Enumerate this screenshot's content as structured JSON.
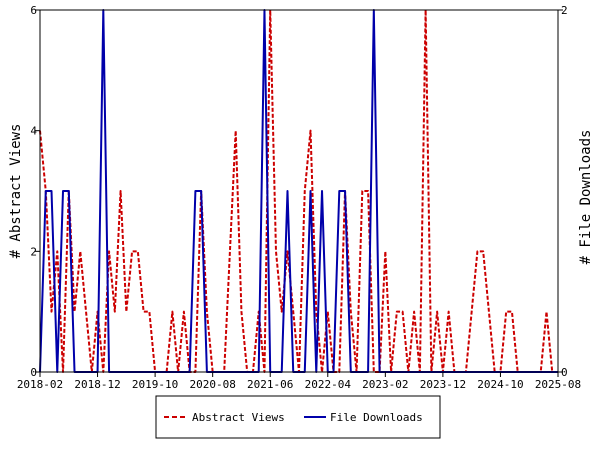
{
  "chart_data": {
    "type": "line",
    "xlabel": "",
    "ylabel_left": "# Abstract Views",
    "ylabel_right": "# File Downloads",
    "x_range": [
      "2018-02",
      "2025-08"
    ],
    "x_ticks": [
      "2018-02",
      "2018-12",
      "2019-10",
      "2020-08",
      "2021-06",
      "2022-04",
      "2023-02",
      "2023-12",
      "2024-10",
      "2025-08"
    ],
    "ylim_left": [
      0,
      6
    ],
    "yticks_left": [
      "0",
      "2",
      "4",
      "6"
    ],
    "ylim_right": [
      0,
      2
    ],
    "yticks_right": [
      "0",
      "2"
    ],
    "grid": false,
    "legend_position": "bottom",
    "series": [
      {
        "name": "Abstract Views",
        "axis": "left",
        "color": "#cc0000",
        "style": "dashed",
        "x": [
          "2018-02",
          "2018-03",
          "2018-04",
          "2018-05",
          "2018-06",
          "2018-07",
          "2018-08",
          "2018-09",
          "2018-10",
          "2018-11",
          "2018-12",
          "2019-01",
          "2019-02",
          "2019-03",
          "2019-04",
          "2019-05",
          "2019-06",
          "2019-07",
          "2019-08",
          "2019-09",
          "2019-10",
          "2019-11",
          "2019-12",
          "2020-01",
          "2020-02",
          "2020-03",
          "2020-04",
          "2020-05",
          "2020-06",
          "2020-07",
          "2020-08",
          "2020-09",
          "2020-10",
          "2020-11",
          "2020-12",
          "2021-01",
          "2021-02",
          "2021-03",
          "2021-04",
          "2021-05",
          "2021-06",
          "2021-07",
          "2021-08",
          "2021-09",
          "2021-10",
          "2021-11",
          "2021-12",
          "2022-01",
          "2022-02",
          "2022-03",
          "2022-04",
          "2022-05",
          "2022-06",
          "2022-07",
          "2022-08",
          "2022-09",
          "2022-10",
          "2022-11",
          "2022-12",
          "2023-01",
          "2023-02",
          "2023-03",
          "2023-04",
          "2023-05",
          "2023-06",
          "2023-07",
          "2023-08",
          "2023-09",
          "2023-10",
          "2023-11",
          "2023-12",
          "2024-01",
          "2024-02",
          "2024-03",
          "2024-04",
          "2024-05",
          "2024-06",
          "2024-07",
          "2024-08",
          "2024-09",
          "2024-10",
          "2024-11",
          "2024-12",
          "2025-01",
          "2025-02",
          "2025-03",
          "2025-04",
          "2025-05",
          "2025-06",
          "2025-07",
          "2025-08"
        ],
        "values": [
          4,
          3,
          1,
          2,
          0,
          3,
          1,
          2,
          1,
          0,
          1,
          0,
          2,
          1,
          3,
          1,
          2,
          2,
          1,
          1,
          0,
          0,
          0,
          1,
          0,
          1,
          0,
          0,
          3,
          1,
          0,
          0,
          0,
          2,
          4,
          1,
          0,
          0,
          1,
          0,
          6,
          2,
          1,
          2,
          1,
          0,
          3,
          4,
          1,
          0,
          1,
          0,
          0,
          3,
          1,
          0,
          3,
          3,
          0,
          0,
          2,
          0,
          1,
          1,
          0,
          1,
          0,
          6,
          0,
          1,
          0,
          1,
          0,
          0,
          0,
          1,
          2,
          2,
          1,
          0,
          0,
          1,
          1,
          0,
          0,
          0,
          0,
          0,
          1,
          0,
          0
        ]
      },
      {
        "name": "File Downloads",
        "axis": "right",
        "color": "#0000aa",
        "style": "solid",
        "x": [
          "2018-02",
          "2018-03",
          "2018-04",
          "2018-05",
          "2018-06",
          "2018-07",
          "2018-08",
          "2018-09",
          "2018-10",
          "2018-11",
          "2018-12",
          "2019-01",
          "2019-02",
          "2019-03",
          "2019-04",
          "2019-05",
          "2019-06",
          "2019-07",
          "2019-08",
          "2019-09",
          "2019-10",
          "2019-11",
          "2019-12",
          "2020-01",
          "2020-02",
          "2020-03",
          "2020-04",
          "2020-05",
          "2020-06",
          "2020-07",
          "2020-08",
          "2020-09",
          "2020-10",
          "2020-11",
          "2020-12",
          "2021-01",
          "2021-02",
          "2021-03",
          "2021-04",
          "2021-05",
          "2021-06",
          "2021-07",
          "2021-08",
          "2021-09",
          "2021-10",
          "2021-11",
          "2021-12",
          "2022-01",
          "2022-02",
          "2022-03",
          "2022-04",
          "2022-05",
          "2022-06",
          "2022-07",
          "2022-08",
          "2022-09",
          "2022-10",
          "2022-11",
          "2022-12",
          "2023-01",
          "2023-02",
          "2023-03",
          "2023-04",
          "2023-05",
          "2023-06",
          "2023-07",
          "2023-08",
          "2023-09",
          "2023-10",
          "2023-11",
          "2023-12",
          "2024-01",
          "2024-02",
          "2024-03",
          "2024-04",
          "2024-05",
          "2024-06",
          "2024-07",
          "2024-08",
          "2024-09",
          "2024-10",
          "2024-11",
          "2024-12",
          "2025-01",
          "2025-02",
          "2025-03",
          "2025-04",
          "2025-05",
          "2025-06",
          "2025-07",
          "2025-08"
        ],
        "values": [
          0,
          1,
          1,
          0,
          1,
          1,
          0,
          0,
          0,
          0,
          0,
          2,
          0,
          0,
          0,
          0,
          0,
          0,
          0,
          0,
          0,
          0,
          0,
          0,
          0,
          0,
          0,
          1,
          1,
          0,
          0,
          0,
          0,
          0,
          0,
          0,
          0,
          0,
          0,
          2,
          0,
          0,
          0,
          1,
          0,
          0,
          0,
          1,
          0,
          1,
          0,
          0,
          1,
          1,
          0,
          0,
          0,
          0,
          2,
          0,
          0,
          0,
          0,
          0,
          0,
          0,
          0,
          0,
          0,
          0,
          0,
          0,
          0,
          0,
          0,
          0,
          0,
          0,
          0,
          0,
          0,
          0,
          0,
          0,
          0,
          0,
          0,
          0,
          0,
          0,
          0
        ]
      }
    ]
  }
}
